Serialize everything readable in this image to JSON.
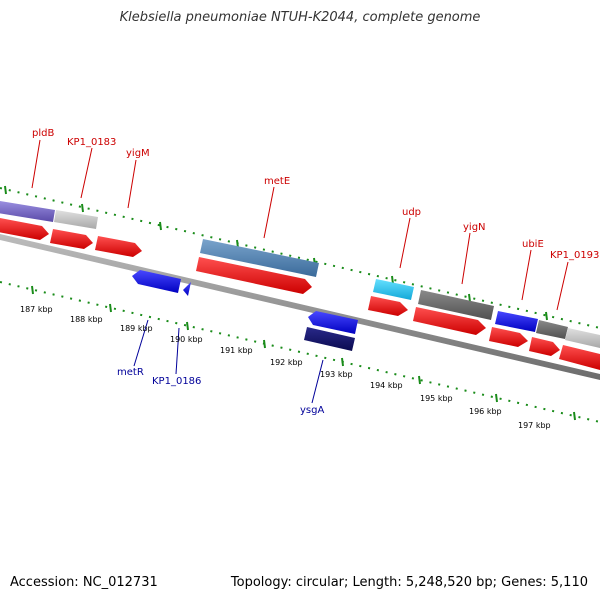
{
  "title": "Klebsiella pneumoniae NTUH-K2044, complete genome",
  "footer": {
    "accession": "Accession: NC_012731",
    "summary": "Topology: circular; Length: 5,248,520 bp; Genes: 5,110"
  },
  "colors": {
    "forward_tick": "#1a8c1a",
    "forward_label": "#cc0000",
    "reverse_label": "#000099",
    "backbone": "#888888"
  },
  "forward_labels": [
    "pldB",
    "KP1_0183",
    "yigM",
    "metE",
    "udp",
    "yigN",
    "ubiE",
    "KP1_0193"
  ],
  "reverse_labels": [
    "metR",
    "KP1_0186",
    "ysgA"
  ],
  "kbp_labels": [
    "187 kbp",
    "188 kbp",
    "189 kbp",
    "190 kbp",
    "191 kbp",
    "192 kbp",
    "193 kbp",
    "194 kbp",
    "195 kbp",
    "196 kbp",
    "197 kbp"
  ]
}
